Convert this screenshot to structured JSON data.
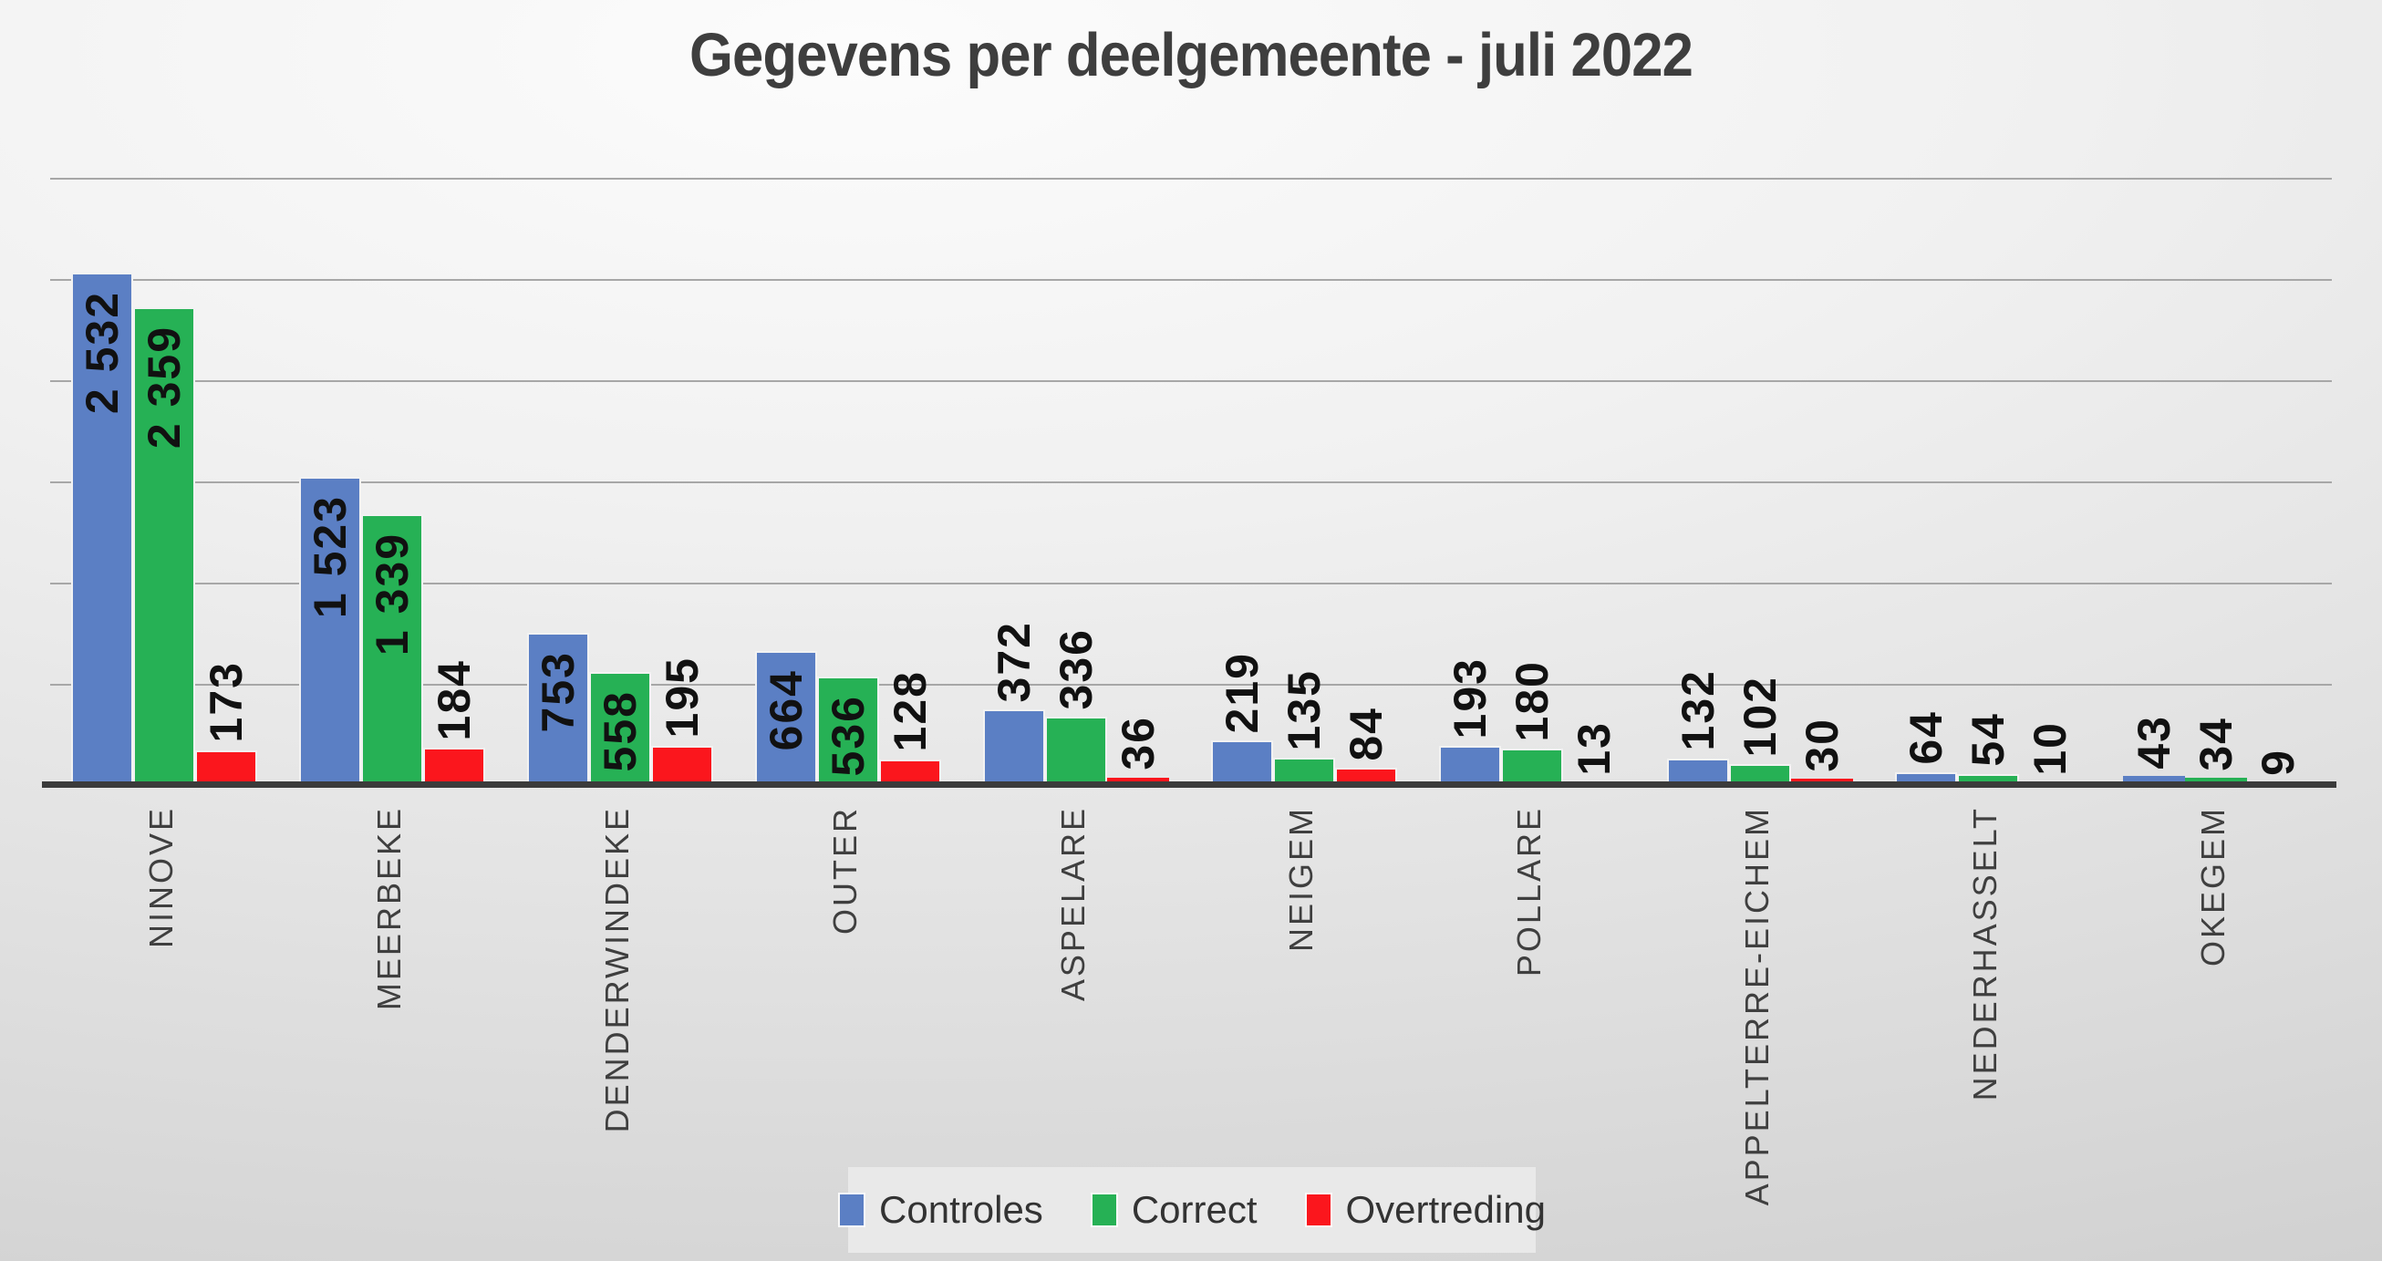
{
  "chart_data": {
    "type": "bar",
    "title": "Gegevens per deelgemeente - juli 2022",
    "categories": [
      "NINOVE",
      "MEERBEKE",
      "DENDERWINDEKE",
      "OUTER",
      "ASPELARE",
      "NEIGEM",
      "POLLARE",
      "APPELTERRE-EICHEM",
      "NEDERHASSELT",
      "OKEGEM"
    ],
    "series": [
      {
        "name": "Controles",
        "color": "#5b7fc4",
        "values": [
          2532,
          1523,
          753,
          664,
          372,
          219,
          193,
          132,
          64,
          43
        ],
        "labels": [
          "2 532",
          "1 523",
          "753",
          "664",
          "372",
          "219",
          "193",
          "132",
          "64",
          "43"
        ]
      },
      {
        "name": "Correct",
        "color": "#26b155",
        "values": [
          2359,
          1339,
          558,
          536,
          336,
          135,
          180,
          102,
          54,
          34
        ],
        "labels": [
          "2 359",
          "1 339",
          "558",
          "536",
          "336",
          "135",
          "180",
          "102",
          "54",
          "34"
        ]
      },
      {
        "name": "Overtreding",
        "color": "#fb161d",
        "values": [
          173,
          184,
          195,
          128,
          36,
          84,
          13,
          30,
          10,
          9
        ],
        "labels": [
          "173",
          "184",
          "195",
          "128",
          "36",
          "84",
          "13",
          "30",
          "10",
          "9"
        ]
      }
    ],
    "ylim": [
      0,
      3000
    ],
    "gridline_step": 500,
    "grid": true,
    "y_axis_tick_labels_visible": false,
    "xlabel": "",
    "ylabel": "",
    "legend_position": "bottom",
    "data_label_rotation": -90,
    "category_label_rotation": -90
  },
  "styles": {
    "grid_color": "#a7a7a7",
    "axis_color": "#3b3b3b",
    "title_color": "#3e3e3e",
    "data_label_color": "#111111",
    "category_label_color": "#3f3f3f",
    "legend_bg": "#e9e9e9",
    "legend_text_color": "#333333",
    "bar_border_color": "#f2f2f2"
  }
}
